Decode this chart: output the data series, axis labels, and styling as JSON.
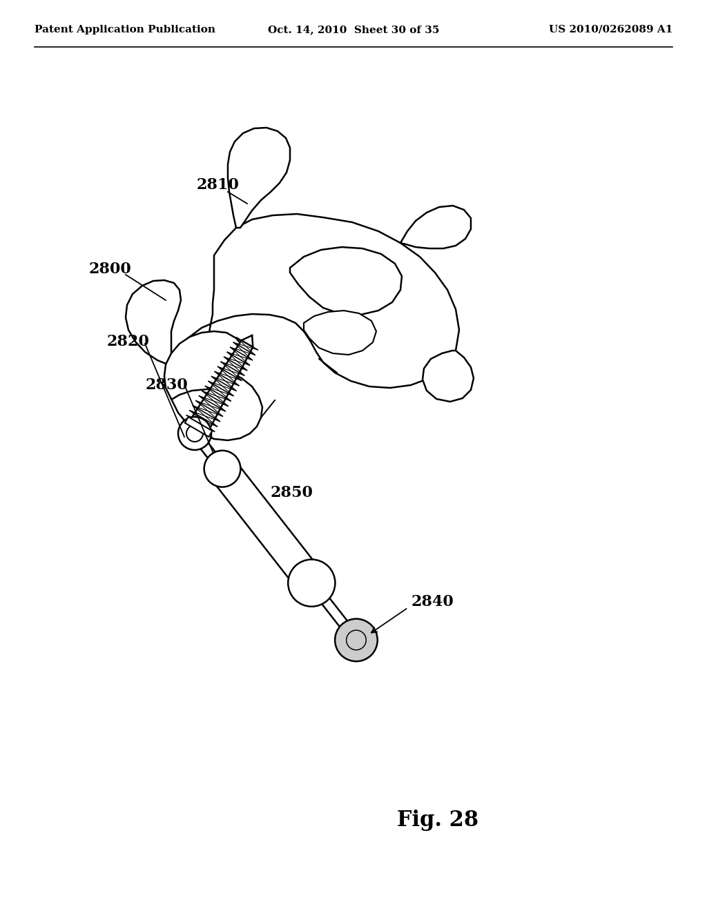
{
  "background_color": "#ffffff",
  "header_left": "Patent Application Publication",
  "header_mid": "Oct. 14, 2010  Sheet 30 of 35",
  "header_right": "US 2010/0262089 A1",
  "figure_label": "Fig. 28",
  "label_2800": "2800",
  "label_2810": "2810",
  "label_2820": "2820",
  "label_2830": "2830",
  "label_2840": "2840",
  "label_2850": "2850",
  "line_color": "#000000",
  "line_width": 1.8,
  "header_fontsize": 11,
  "label_fontsize": 16,
  "fig_label_fontsize": 22
}
